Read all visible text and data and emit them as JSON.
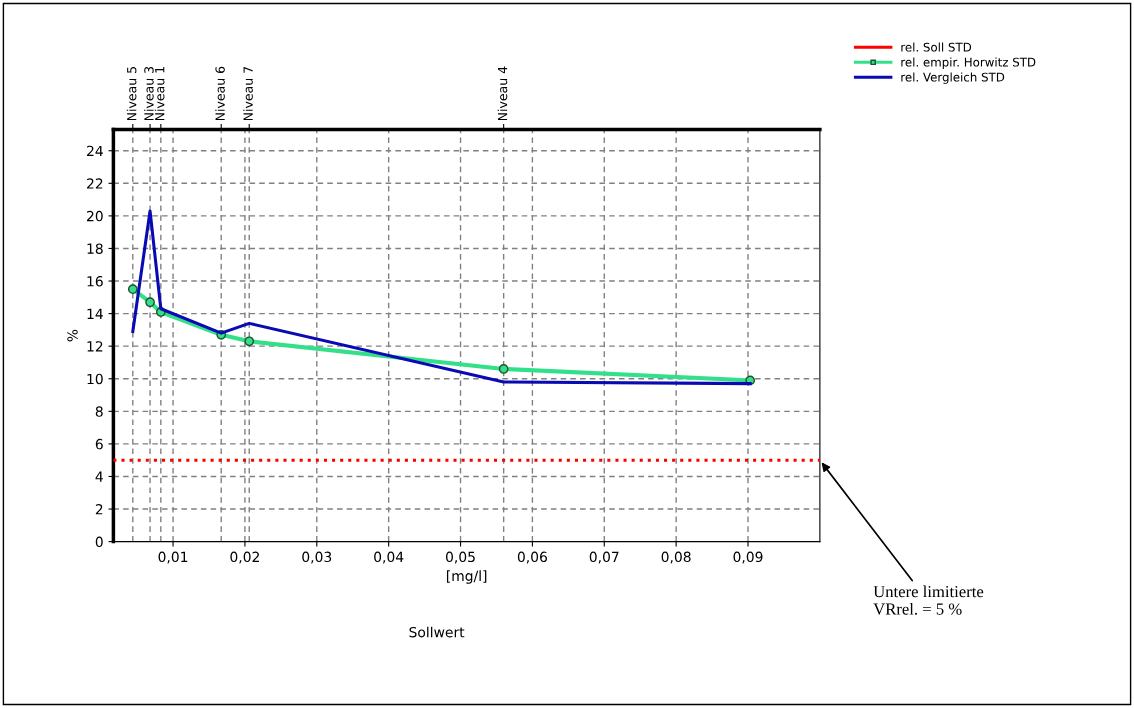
{
  "chart_data": {
    "type": "line",
    "ylabel": "%",
    "xlabel": "[mg/l]",
    "xlim": [
      0.0017,
      0.1
    ],
    "ylim": [
      0,
      25.3
    ],
    "xticks": [
      {
        "value": 0.01,
        "label": "0,01"
      },
      {
        "value": 0.02,
        "label": "0,02"
      },
      {
        "value": 0.03,
        "label": "0,03"
      },
      {
        "value": 0.04,
        "label": "0,04"
      },
      {
        "value": 0.05,
        "label": "0,05"
      },
      {
        "value": 0.06,
        "label": "0,06"
      },
      {
        "value": 0.07,
        "label": "0,07"
      },
      {
        "value": 0.08,
        "label": "0,08"
      },
      {
        "value": 0.09,
        "label": "0,09"
      }
    ],
    "yticks": [
      0,
      2,
      4,
      6,
      8,
      10,
      12,
      14,
      16,
      18,
      20,
      22,
      24
    ],
    "grid": true,
    "legend": "top right",
    "series": [
      {
        "name": "rel. Soll STD",
        "color": "#ff0000",
        "line_style": "dotted",
        "marker": "none",
        "x": [
          0.0017,
          0.1
        ],
        "values": [
          5,
          5
        ]
      },
      {
        "name": "rel. empir. Horwitz STD",
        "color": "#33e08a",
        "marker": "circle",
        "line_style": "solid",
        "x": [
          0.0044,
          0.0068,
          0.0083,
          0.0167,
          0.0206,
          0.056,
          0.0903
        ],
        "values": [
          15.5,
          14.7,
          14.1,
          12.7,
          12.3,
          10.6,
          9.9
        ]
      },
      {
        "name": "rel. Vergleich STD",
        "color": "#0a0ab4",
        "marker": "none",
        "line_style": "solid",
        "x": [
          0.0044,
          0.0068,
          0.0083,
          0.0167,
          0.0206,
          0.056,
          0.0903
        ],
        "values": [
          12.9,
          20.3,
          14.3,
          12.8,
          13.4,
          9.8,
          9.7
        ]
      }
    ],
    "ref_lines": [
      {
        "axis": "x",
        "value": 0.0044,
        "label": "Niveau 5",
        "color": "#808080",
        "line_style": "dashed"
      },
      {
        "axis": "x",
        "value": 0.0068,
        "label": "Niveau 3",
        "color": "#808080",
        "line_style": "dashed"
      },
      {
        "axis": "x",
        "value": 0.0083,
        "label": "Niveau 1",
        "color": "#808080",
        "line_style": "dashed"
      },
      {
        "axis": "x",
        "value": 0.0167,
        "label": "Niveau 6",
        "color": "#808080",
        "line_style": "dashed"
      },
      {
        "axis": "x",
        "value": 0.0206,
        "label": "Niveau 7",
        "color": "#808080",
        "line_style": "dashed"
      },
      {
        "axis": "x",
        "value": 0.056,
        "label": "Niveau 4",
        "color": "#808080",
        "line_style": "dashed"
      }
    ],
    "annotations": [
      "Sollwert",
      {
        "text": "Untere limitierte\nVRrel. = 5 %",
        "x": 0.1,
        "y": 5
      }
    ]
  }
}
